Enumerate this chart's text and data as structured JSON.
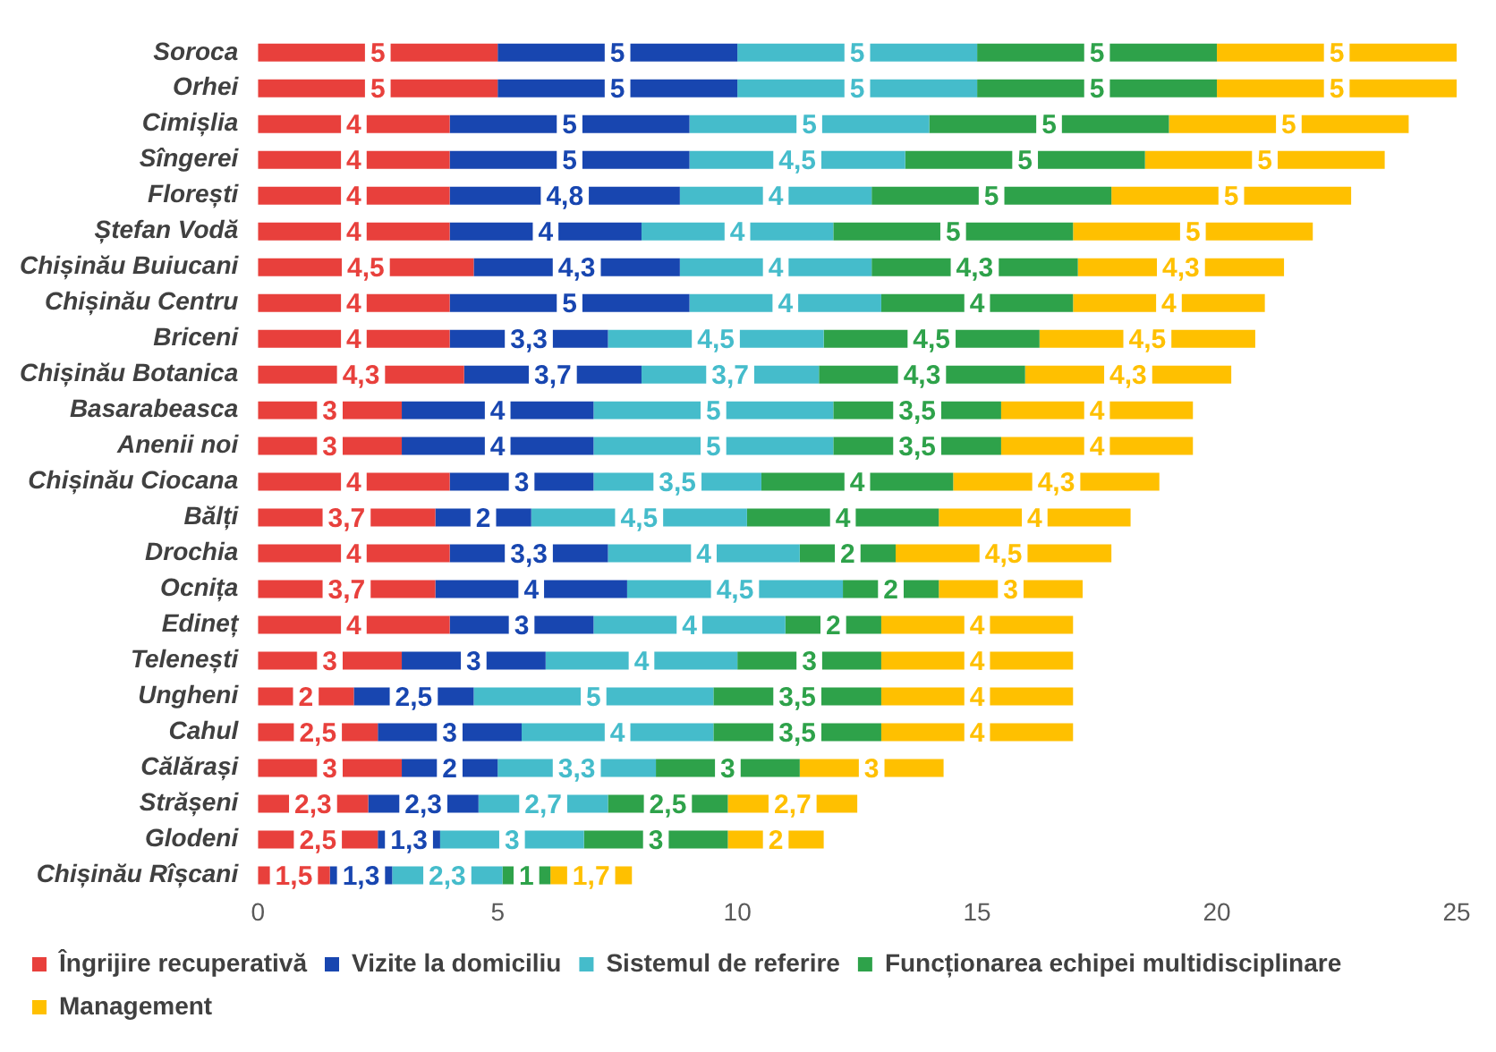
{
  "chart_data": {
    "type": "bar",
    "orientation": "horizontal",
    "stacked": true,
    "legend": "bottom",
    "categories": [
      "Soroca",
      "Orhei",
      "Cimișlia",
      "Sîngerei",
      "Florești",
      "Ștefan Vodă",
      "Chișinău Buiucani",
      "Chișinău Centru",
      "Briceni",
      "Chișinău Botanica",
      "Basarabeasca",
      "Anenii noi",
      "Chișinău Ciocana",
      "Bălți",
      "Drochia",
      "Ocnița",
      "Edineț",
      "Telenești",
      "Ungheni",
      "Cahul",
      "Călărași",
      "Strășeni",
      "Glodeni",
      "Chișinău Rîșcani"
    ],
    "xlim": [
      0,
      25
    ],
    "xticks": [
      0,
      5,
      10,
      15,
      20,
      25
    ],
    "series": [
      {
        "name": "Îngrijire recuperativă",
        "color": "#e8403c",
        "values": [
          5,
          5,
          4,
          4,
          4,
          4,
          4.5,
          4,
          4,
          4.3,
          3,
          3,
          4,
          3.7,
          4,
          3.7,
          4,
          3,
          2,
          2.5,
          3,
          2.3,
          2.5,
          1.5
        ],
        "value_labels": [
          "5",
          "5",
          "4",
          "4",
          "4",
          "4",
          "4,5",
          "4",
          "4",
          "4,3",
          "3",
          "3",
          "4",
          "3,7",
          "4",
          "3,7",
          "4",
          "3",
          "2",
          "2,5",
          "3",
          "2,3",
          "2,5",
          "1,5"
        ]
      },
      {
        "name": "Vizite la domiciliu",
        "color": "#1846b0",
        "values": [
          5,
          5,
          5,
          5,
          4.8,
          4,
          4.3,
          5,
          3.3,
          3.7,
          4,
          4,
          3,
          2,
          3.3,
          4,
          3,
          3,
          2.5,
          3,
          2,
          2.3,
          1.3,
          1.3
        ],
        "value_labels": [
          "5",
          "5",
          "5",
          "5",
          "4,8",
          "4",
          "4,3",
          "5",
          "3,3",
          "3,7",
          "4",
          "4",
          "3",
          "2",
          "3,3",
          "4",
          "3",
          "3",
          "2,5",
          "3",
          "2",
          "2,3",
          "1,3",
          "1,3"
        ]
      },
      {
        "name": "Sistemul de referire",
        "color": "#45bccb",
        "values": [
          5,
          5,
          5,
          4.5,
          4,
          4,
          4,
          4,
          4.5,
          3.7,
          5,
          5,
          3.5,
          4.5,
          4,
          4.5,
          4,
          4,
          5,
          4,
          3.3,
          2.7,
          3,
          2.3
        ],
        "value_labels": [
          "5",
          "5",
          "5",
          "4,5",
          "4",
          "4",
          "4",
          "4",
          "4,5",
          "3,7",
          "5",
          "5",
          "3,5",
          "4,5",
          "4",
          "4,5",
          "4",
          "4",
          "5",
          "4",
          "3,3",
          "2,7",
          "3",
          "2,3"
        ]
      },
      {
        "name": "Funcționarea echipei multidisciplinare",
        "color": "#2ea24a",
        "values": [
          5,
          5,
          5,
          5,
          5,
          5,
          4.3,
          4,
          4.5,
          4.3,
          3.5,
          3.5,
          4,
          4,
          2,
          2,
          2,
          3,
          3.5,
          3.5,
          3,
          2.5,
          3,
          1
        ],
        "value_labels": [
          "5",
          "5",
          "5",
          "5",
          "5",
          "5",
          "4,3",
          "4",
          "4,5",
          "4,3",
          "3,5",
          "3,5",
          "4",
          "4",
          "2",
          "2",
          "2",
          "3",
          "3,5",
          "3,5",
          "3",
          "2,5",
          "3",
          "1"
        ]
      },
      {
        "name": "Management",
        "color": "#ffc000",
        "values": [
          5,
          5,
          5,
          5,
          5,
          5,
          4.3,
          4,
          4.5,
          4.3,
          4,
          4,
          4.3,
          4,
          4.5,
          3,
          4,
          4,
          4,
          4,
          3,
          2.7,
          2,
          1.7
        ],
        "value_labels": [
          "5",
          "5",
          "5",
          "5",
          "5",
          "5",
          "4,3",
          "4",
          "4,5",
          "4,3",
          "4",
          "4",
          "4,3",
          "4",
          "4,5",
          "3",
          "4",
          "4",
          "4",
          "4",
          "3",
          "2,7",
          "2",
          "1,7"
        ]
      }
    ]
  }
}
